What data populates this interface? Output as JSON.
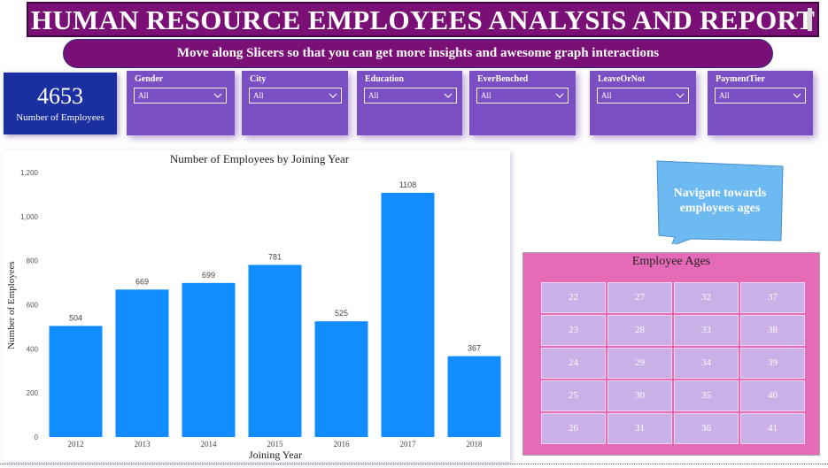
{
  "header": {
    "title": "HUMAN RESOURCE EMPLOYEES ANALYSIS AND REPORT",
    "subtitle": "Move along Slicers so that you can get more insights and awesome graph interactions"
  },
  "kpi": {
    "value": "4653",
    "label": "Number of Employees"
  },
  "slicers": [
    {
      "label": "Gender",
      "value": "All"
    },
    {
      "label": "City",
      "value": "All"
    },
    {
      "label": "Education",
      "value": "All"
    },
    {
      "label": "EverBenched",
      "value": "All"
    },
    {
      "label": "LeaveOrNot",
      "value": "All"
    },
    {
      "label": "PaymentTier",
      "value": "All"
    }
  ],
  "callout": {
    "text": "Navigate towards employees ages"
  },
  "ages": {
    "title": "Employee Ages",
    "values": [
      "22",
      "27",
      "32",
      "37",
      "23",
      "28",
      "33",
      "38",
      "24",
      "29",
      "34",
      "39",
      "25",
      "30",
      "35",
      "40",
      "26",
      "31",
      "36",
      "41"
    ]
  },
  "colors": {
    "bar": "#118dff",
    "title_bg": "#7a0f76",
    "slicer_bg": "#7b4fc4",
    "kpi_bg": "#1a2fa0",
    "ages_bg": "#e56bb9",
    "age_cell": "#c9b0e6",
    "callout": "#6db9f2"
  },
  "chart_data": {
    "type": "bar",
    "title": "Number of Employees by Joining Year",
    "xlabel": "Joining Year",
    "ylabel": "Number of Employees",
    "categories": [
      "2012",
      "2013",
      "2014",
      "2015",
      "2016",
      "2017",
      "2018"
    ],
    "values": [
      504,
      669,
      699,
      781,
      525,
      1108,
      367
    ],
    "ylim": [
      0,
      1200
    ],
    "yticks": [
      "0",
      "200",
      "400",
      "600",
      "800",
      "1,000",
      "1,200"
    ],
    "grid": false,
    "data_labels": true
  }
}
